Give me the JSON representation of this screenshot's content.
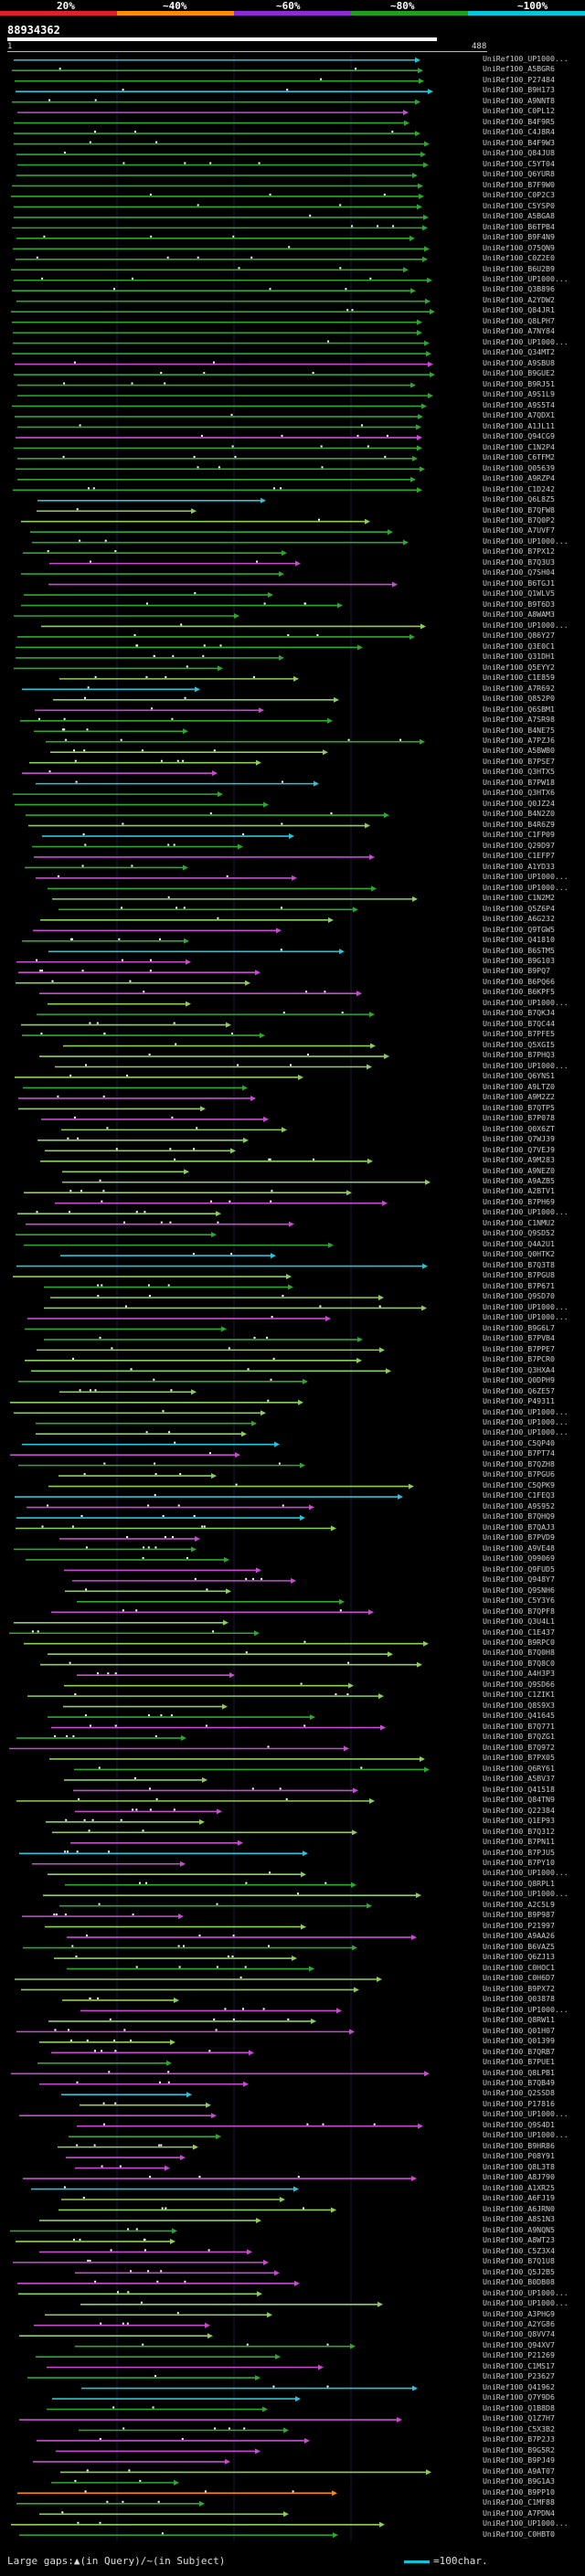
{
  "scale": {
    "labels": [
      "20%",
      "~40%",
      "~60%",
      "~80%",
      "~100%"
    ],
    "colors": [
      "#e0202a",
      "#ff8c00",
      "#8e2ad6",
      "#1f9e1f",
      "#00c8d8"
    ]
  },
  "query": {
    "id": "88934362",
    "start": "1",
    "end": "488"
  },
  "legend": {
    "gaps_text": "Large gaps:▲(in Query)/~(in Subject)",
    "scale_text": "=100char."
  },
  "hit_colors": {
    "cyan": "#26c6da",
    "green": "#2ea82e",
    "lightgreen": "#8bcf5c",
    "magenta": "#c84bd0",
    "orange": "#ff8c00"
  },
  "hits": [
    "UniRef100_UP1000...",
    "UniRef100_A5BGR6",
    "UniRef100_P27484",
    "UniRef100_B9H173",
    "UniRef100_A9NNT8",
    "UniRef100_C0PL12",
    "UniRef100_B4F9R5",
    "UniRef100_C4J8R4",
    "UniRef100_B4F9W3",
    "UniRef100_Q84JU8",
    "UniRef100_C5YT04",
    "UniRef100_Q6YUR8",
    "UniRef100_B7F9W0",
    "UniRef100_C0P2C3",
    "UniRef100_C5YSP0",
    "UniRef100_A5BGA8",
    "UniRef100_B6TPB4",
    "UniRef100_B9F4N9",
    "UniRef100_O75QN9",
    "UniRef100_C0Z2E0",
    "UniRef100_B6U2B9",
    "UniRef100_UP1000...",
    "UniRef100_Q3B896",
    "UniRef100_A2YDW2",
    "UniRef100_Q84JR1",
    "UniRef100_Q8LPH7",
    "UniRef100_A7NY84",
    "UniRef100_UP1000...",
    "UniRef100_Q34MT2",
    "UniRef100_A9SBU8",
    "UniRef100_B9GUE2",
    "UniRef100_B9RJ51",
    "UniRef100_A9S1L9",
    "UniRef100_A9S5T4",
    "UniRef100_A7QDX1",
    "UniRef100_A1JL11",
    "UniRef100_Q94CG9",
    "UniRef100_C1N2P4",
    "UniRef100_C6TFM2",
    "UniRef100_Q05639",
    "UniRef100_A9RZP4",
    "UniRef100_C1D242",
    "UniRef100_Q6L8Z5",
    "UniRef100_B7QFW8",
    "UniRef100_B7Q0P2",
    "UniRef100_A7UVF7",
    "UniRef100_UP1000...",
    "UniRef100_B7PX12",
    "UniRef100_B7Q3U3",
    "UniRef100_Q7SH04",
    "UniRef100_B6TGJ1",
    "UniRef100_Q1WLV5",
    "UniRef100_B9T6D3",
    "UniRef100_A8WAM3",
    "UniRef100_UP1000...",
    "UniRef100_Q86Y27",
    "UniRef100_Q3E0C1",
    "UniRef100_Q31DH1",
    "UniRef100_Q5EYY2",
    "UniRef100_C1E859",
    "UniRef100_A7R692",
    "UniRef100_Q852P0",
    "UniRef100_Q6SBM1",
    "UniRef100_A7SR98",
    "UniRef100_B4NE75",
    "UniRef100_A7PZJ6",
    "UniRef100_A5BWB0",
    "UniRef100_B7PSE7",
    "UniRef100_Q3HTX5",
    "UniRef100_B7PW18",
    "UniRef100_Q3HTX6",
    "UniRef100_Q0JZ24",
    "UniRef100_B4N2Z0",
    "UniRef100_B4R6Z9",
    "UniRef100_C1FP09",
    "UniRef100_Q29D97",
    "UniRef100_C1EFP7",
    "UniRef100_A1YD33",
    "UniRef100_UP1000...",
    "UniRef100_UP1000...",
    "UniRef100_C1N2M2",
    "UniRef100_Q5Z6P4",
    "UniRef100_A6G232",
    "UniRef100_Q9TGW5",
    "UniRef100_Q41810",
    "UniRef100_B6STM5",
    "UniRef100_B9G103",
    "UniRef100_B9PQ7",
    "UniRef100_B6PQ66",
    "UniRef100_B6KPF5",
    "UniRef100_UP1000...",
    "UniRef100_B7QKJ4",
    "UniRef100_B7QC44",
    "UniRef100_B7PFE5",
    "UniRef100_Q5XGI5",
    "UniRef100_B7PHQ3",
    "UniRef100_UP1000...",
    "UniRef100_Q6YNS1",
    "UniRef100_A9LTZ0",
    "UniRef100_A9M2Z2",
    "UniRef100_B7QTP5",
    "UniRef100_B7P078",
    "UniRef100_Q0X6ZT",
    "UniRef100_Q7WJ39",
    "UniRef100_Q7VEJ9",
    "UniRef100_A9M283",
    "UniRef100_A9NEZ0",
    "UniRef100_A9AZB5",
    "UniRef100_A2BTV1",
    "UniRef100_B7PH69",
    "UniRef100_UP1000...",
    "UniRef100_C1NMU2",
    "UniRef100_Q9SD52",
    "UniRef100_Q4A2U1",
    "UniRef100_Q0HTK2",
    "UniRef100_B7Q3T8",
    "UniRef100_B7PGU8",
    "UniRef100_B7P671",
    "UniRef100_Q9SD70",
    "UniRef100_UP1000...",
    "UniRef100_UP1000...",
    "UniRef100_B9G6L7",
    "UniRef100_B7PVB4",
    "UniRef100_B7PPE7",
    "UniRef100_B7PCR0",
    "UniRef100_Q3HXA4",
    "UniRef100_Q0DPH9",
    "UniRef100_Q6ZE57",
    "UniRef100_P49311",
    "UniRef100_UP1000...",
    "UniRef100_UP1000...",
    "UniRef100_UP1000...",
    "UniRef100_C5QP40",
    "UniRef100_B7PT74",
    "UniRef100_B7QZH8",
    "UniRef100_B7PGU6",
    "UniRef100_C5QPK9",
    "UniRef100_C1FEQ3",
    "UniRef100_A9S952",
    "UniRef100_B7QHQ9",
    "UniRef100_B7QAJ3",
    "UniRef100_B7PVD9",
    "UniRef100_A9VE48",
    "UniRef100_Q99069",
    "UniRef100_Q9FUD5",
    "UniRef100_Q948Y7",
    "UniRef100_Q9SNH6",
    "UniRef100_C5Y3Y6",
    "UniRef100_B7QPF8",
    "UniRef100_Q3U4L1",
    "UniRef100_C1E437",
    "UniRef100_B9RPC0",
    "UniRef100_B7Q0H8",
    "UniRef100_B7Q8C0",
    "UniRef100_A4H3P3",
    "UniRef100_Q9SD66",
    "UniRef100_C1ZIK1",
    "UniRef100_Q8S9X3",
    "UniRef100_Q41645",
    "UniRef100_B7Q771",
    "UniRef100_B7QZG1",
    "UniRef100_B7Q972",
    "UniRef100_B7PX05",
    "UniRef100_Q6RY61",
    "UniRef100_A5BV37",
    "UniRef100_Q41518",
    "UniRef100_Q84TN9",
    "UniRef100_Q22384",
    "UniRef100_Q1EP93",
    "UniRef100_B7Q312",
    "UniRef100_B7PN11",
    "UniRef100_B7PJU5",
    "UniRef100_B7PY10",
    "UniRef100_UP1000...",
    "UniRef100_Q8RPL1",
    "UniRef100_UP1000...",
    "UniRef100_A2C5L9",
    "UniRef100_B9P987",
    "UniRef100_P21997",
    "UniRef100_A9AA26",
    "UniRef100_B6VAZ5",
    "UniRef100_Q6ZJ13",
    "UniRef100_C0HOC1",
    "UniRef100_C0H6D7",
    "UniRef100_B9PX72",
    "UniRef100_Q03878",
    "UniRef100_UP1000...",
    "UniRef100_Q8RW11",
    "UniRef100_Q01H07",
    "UniRef100_Q01399",
    "UniRef100_B7QRB7",
    "UniRef100_B7PUE1",
    "UniRef100_Q8LPB1",
    "UniRef100_B7QB49",
    "UniRef100_Q2SSD8",
    "UniRef100_P17816",
    "UniRef100_UP1000...",
    "UniRef100_Q9S4D1",
    "UniRef100_UP1000...",
    "UniRef100_B9HR86",
    "UniRef100_P08Y91",
    "UniRef100_Q8L3T8",
    "UniRef100_A8J790",
    "UniRef100_A1XR25",
    "UniRef100_A6FJ19",
    "UniRef100_A6JRN0",
    "UniRef100_A8S1N3",
    "UniRef100_A9NQN5",
    "UniRef100_A8WT23",
    "UniRef100_C5Z3X4",
    "UniRef100_B7Q1U8",
    "UniRef100_Q5J2B5",
    "UniRef100_B0DB08",
    "UniRef100_UP1000...",
    "UniRef100_UP1000...",
    "UniRef100_A3PHG9",
    "UniRef100_A2YG86",
    "UniRef100_Q8VV74",
    "UniRef100_Q94XV7",
    "UniRef100_P21269",
    "UniRef100_C1MS17",
    "UniRef100_P23627",
    "UniRef100_Q41962",
    "UniRef100_Q7Y9D6",
    "UniRef100_Q1B8D8",
    "UniRef100_Q1Z7H7",
    "UniRef100_C5X3B2",
    "UniRef100_B7P2J3",
    "UniRef100_B9G5R2",
    "UniRef100_B9PJ49",
    "UniRef100_A9AT07",
    "UniRef100_B9G1A3",
    "UniRef100_B9PP10",
    "UniRef100_C1MF88",
    "UniRef100_A7PDN4",
    "UniRef100_UP1000...",
    "UniRef100_C0HBT0"
  ]
}
